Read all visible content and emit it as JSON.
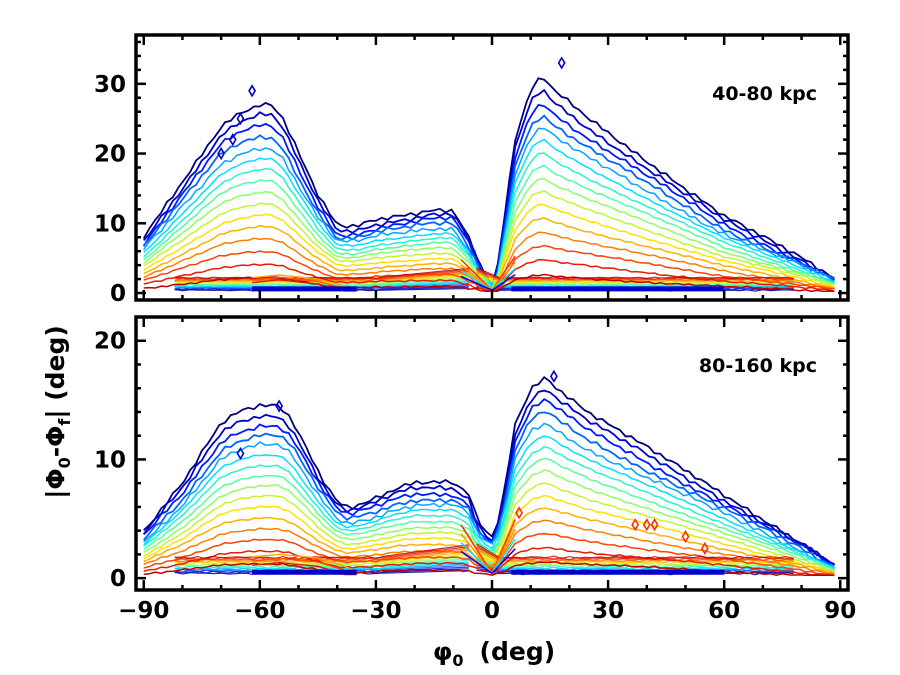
{
  "chart_data": {
    "type": "contour",
    "xlabel": "φ₀ (deg)",
    "xlabel_parts": {
      "base": "φ",
      "sub": "0",
      "rest": "(deg)"
    },
    "ylabel": "|Φ₀-Φf| (deg)",
    "ylabel_parts": {
      "open": "|Φ",
      "sub0": "0",
      "mid": "-Φ",
      "subf": "f",
      "close": "| (deg)"
    },
    "xlim": [
      -92,
      92
    ],
    "x_ticks": [
      -90,
      -60,
      -30,
      0,
      30,
      60,
      90
    ],
    "x_tick_labels": [
      "−90",
      "−60",
      "−30",
      "0",
      "30",
      "60",
      "90"
    ],
    "contour_levels": 16,
    "colormap": [
      "#00007f",
      "#0000ff",
      "#0080ff",
      "#00e0ff",
      "#40ffb0",
      "#a0ff50",
      "#ffe000",
      "#ff9000",
      "#ff3000",
      "#c00000"
    ],
    "panels": [
      {
        "label": "40-80 kpc",
        "ylim": [
          -1,
          37
        ],
        "y_ticks": [
          0,
          10,
          20,
          30
        ],
        "y_tick_labels": [
          "0",
          "10",
          "20",
          "30"
        ],
        "envelope": [
          [
            -90,
            8
          ],
          [
            -85,
            12
          ],
          [
            -80,
            16
          ],
          [
            -75,
            20
          ],
          [
            -70,
            24
          ],
          [
            -65,
            26
          ],
          [
            -60,
            27
          ],
          [
            -57,
            27
          ],
          [
            -54,
            25
          ],
          [
            -50,
            20
          ],
          [
            -45,
            14
          ],
          [
            -40,
            9.5
          ],
          [
            -35,
            9.5
          ],
          [
            -30,
            10.5
          ],
          [
            -20,
            11.5
          ],
          [
            -15,
            12
          ],
          [
            -10,
            12
          ],
          [
            -6,
            8
          ],
          [
            -3,
            4
          ],
          [
            -1,
            2
          ],
          [
            0,
            1
          ],
          [
            1,
            2
          ],
          [
            3,
            10
          ],
          [
            6,
            22
          ],
          [
            10,
            29
          ],
          [
            13,
            31
          ],
          [
            16,
            29
          ],
          [
            25,
            25
          ],
          [
            40,
            19
          ],
          [
            60,
            11
          ],
          [
            80,
            5
          ],
          [
            89,
            2
          ]
        ],
        "inner_floor": [
          [
            -62,
            2.2
          ],
          [
            -55,
            2.6
          ],
          [
            -45,
            2
          ],
          [
            -38,
            1
          ],
          [
            -35,
            0.5
          ]
        ],
        "outliers": [
          [
            -62,
            29
          ],
          [
            -65,
            25
          ],
          [
            -67,
            22
          ],
          [
            -70,
            20
          ],
          [
            18,
            33
          ]
        ]
      },
      {
        "label": "80-160 kpc",
        "ylim": [
          -1,
          22
        ],
        "y_ticks": [
          0,
          10,
          20
        ],
        "y_tick_labels": [
          "0",
          "10",
          "20"
        ],
        "envelope": [
          [
            -90,
            4
          ],
          [
            -85,
            6
          ],
          [
            -80,
            8
          ],
          [
            -75,
            10.5
          ],
          [
            -70,
            13
          ],
          [
            -65,
            14
          ],
          [
            -60,
            14.5
          ],
          [
            -55,
            14.5
          ],
          [
            -52,
            13.5
          ],
          [
            -48,
            11
          ],
          [
            -44,
            8.5
          ],
          [
            -40,
            6.5
          ],
          [
            -37,
            6
          ],
          [
            -32,
            6.5
          ],
          [
            -25,
            7.5
          ],
          [
            -20,
            8
          ],
          [
            -10,
            8
          ],
          [
            -6,
            7
          ],
          [
            -4,
            5
          ],
          [
            -2,
            4
          ],
          [
            0,
            3.5
          ],
          [
            1,
            4
          ],
          [
            3,
            7
          ],
          [
            6,
            13
          ],
          [
            10,
            16
          ],
          [
            14,
            17
          ],
          [
            17,
            16
          ],
          [
            25,
            14
          ],
          [
            40,
            11
          ],
          [
            60,
            7
          ],
          [
            80,
            3
          ],
          [
            89,
            1
          ]
        ],
        "inner_floor": [
          [
            -62,
            1.8
          ],
          [
            -55,
            2
          ],
          [
            -45,
            1.7
          ],
          [
            -38,
            1
          ],
          [
            -35,
            0.5
          ]
        ],
        "outliers": [
          [
            -65,
            10.5
          ],
          [
            -55,
            14.5
          ],
          [
            16,
            17
          ],
          [
            7,
            5.5
          ],
          [
            37,
            4.5
          ],
          [
            40,
            4.5
          ],
          [
            42,
            4.5
          ],
          [
            50,
            3.5
          ],
          [
            55,
            2.5
          ]
        ]
      }
    ]
  }
}
